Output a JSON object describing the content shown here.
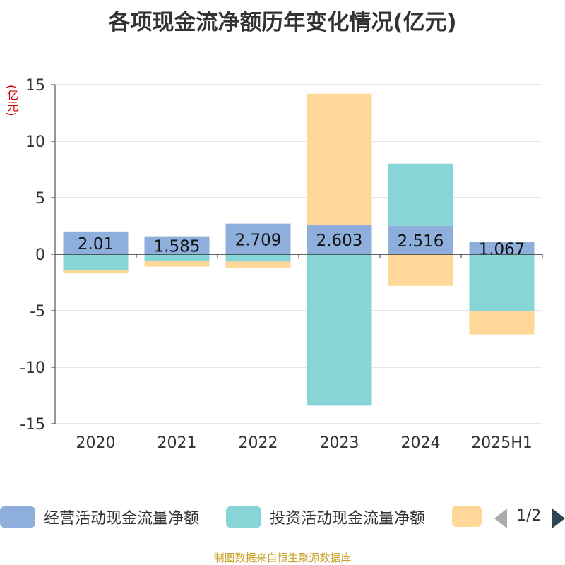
{
  "chart_data": {
    "type": "bar",
    "title": "各项现金流净额历年变化情况(亿元)",
    "ylabel": "(亿元)",
    "categories": [
      "2020",
      "2021",
      "2022",
      "2023",
      "2024",
      "2025H1"
    ],
    "ylim": [
      -15,
      15
    ],
    "yticks": [
      15,
      10,
      5,
      0,
      -5,
      -10,
      -15
    ],
    "stacked": true,
    "grid": true,
    "series": [
      {
        "name": "经营活动现金流量净额",
        "color": "#8eaedc",
        "values": [
          2.01,
          1.585,
          2.709,
          2.603,
          2.516,
          1.067
        ],
        "labels": [
          "2.01",
          "1.585",
          "2.709",
          "2.603",
          "2.516",
          "1.067"
        ]
      },
      {
        "name": "投资活动现金流量净额",
        "color": "#88d5d8",
        "values": [
          -1.4,
          -0.6,
          -0.65,
          -13.4,
          5.5,
          -5.0
        ]
      },
      {
        "name": "",
        "color": "#ffd899",
        "values": [
          -0.3,
          -0.5,
          -0.55,
          11.6,
          -2.8,
          -2.1
        ]
      }
    ]
  },
  "legend": {
    "items": [
      {
        "label": "经营活动现金流量净额",
        "color": "#8eaedc"
      },
      {
        "label": "投资活动现金流量净额",
        "color": "#88d5d8"
      },
      {
        "label": "",
        "color": "#ffd899"
      }
    ],
    "pager": "1/2"
  },
  "source": "制图数据来自恒生聚源数据库"
}
